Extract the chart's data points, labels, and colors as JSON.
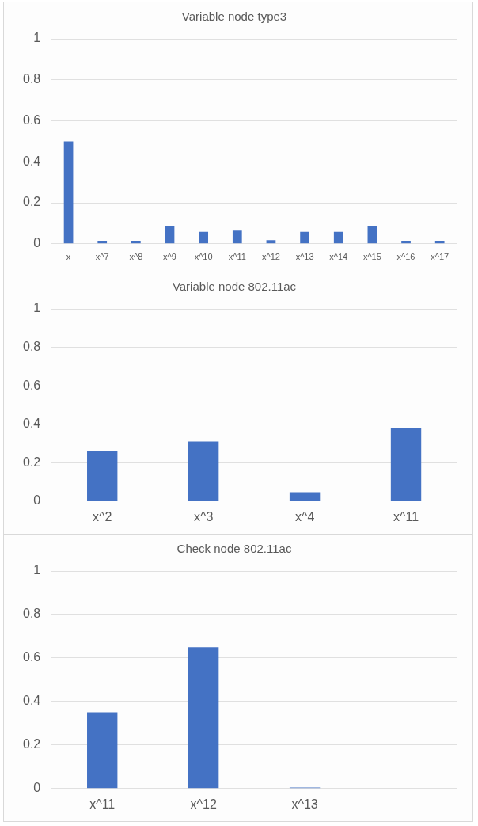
{
  "chart_data": [
    {
      "type": "bar",
      "title": "Variable node type3",
      "categories": [
        "x",
        "x^7",
        "x^8",
        "x^9",
        "x^10",
        "x^11",
        "x^12",
        "x^13",
        "x^14",
        "x^15",
        "x^16",
        "x^17"
      ],
      "values": [
        0.5,
        0.015,
        0.015,
        0.084,
        0.058,
        0.064,
        0.018,
        0.058,
        0.058,
        0.084,
        0.015,
        0.015
      ],
      "color": "#4472c4",
      "ylim": [
        0,
        1
      ],
      "yticks": [
        0,
        0.2,
        0.4,
        0.6,
        0.8,
        1
      ],
      "grid": "y"
    },
    {
      "type": "bar",
      "title": "Variable node 802.11ac",
      "categories": [
        "x^2",
        "x^3",
        "x^4",
        "x^11"
      ],
      "values": [
        0.26,
        0.31,
        0.047,
        0.38
      ],
      "color": "#4472c4",
      "ylim": [
        0,
        1
      ],
      "yticks": [
        0,
        0.2,
        0.4,
        0.6,
        0.8,
        1
      ],
      "grid": "y"
    },
    {
      "type": "bar",
      "title": "Check node 802.11ac",
      "categories": [
        "x^11",
        "x^12",
        "x^13",
        null
      ],
      "values": [
        0.35,
        0.65,
        0.005,
        null
      ],
      "color": "#4472c4",
      "ylim": [
        0,
        1
      ],
      "yticks": [
        0,
        0.2,
        0.4,
        0.6,
        0.8,
        1
      ],
      "grid": "y"
    }
  ]
}
